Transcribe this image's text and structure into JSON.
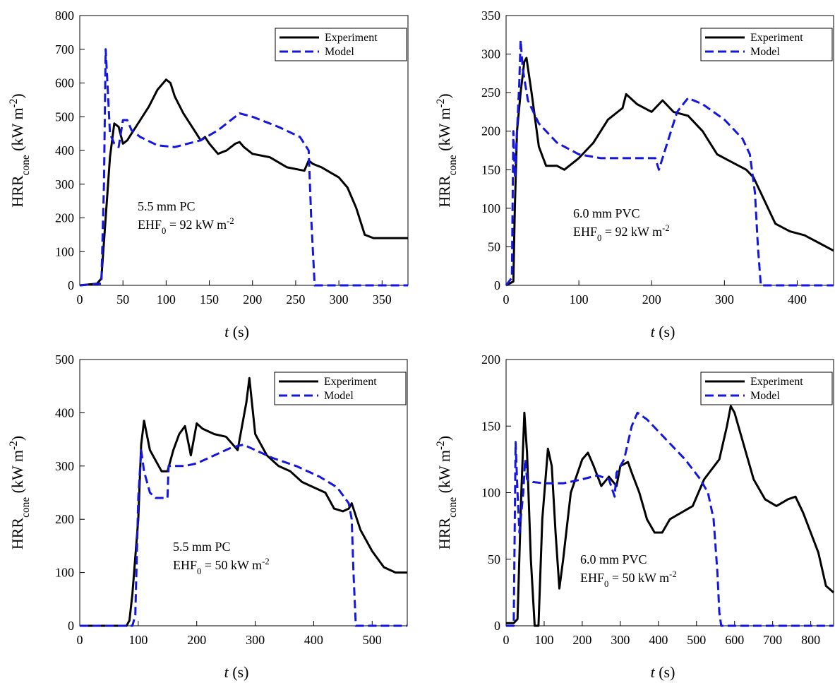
{
  "chart_data": [
    {
      "type": "line",
      "ylabel": [
        "HRR",
        "cone",
        " (kW m",
        "-2",
        ")"
      ],
      "xlabel": [
        "t",
        " (s)"
      ],
      "annotation": [
        "5.5 mm PC",
        "EHF",
        "0",
        " = 92 kW m",
        "-2"
      ],
      "xlim": [
        0,
        380
      ],
      "xticks": [
        0,
        50,
        100,
        150,
        200,
        250,
        300,
        350
      ],
      "ylim": [
        0,
        800
      ],
      "yticks": [
        0,
        100,
        200,
        300,
        400,
        500,
        600,
        700,
        800
      ],
      "legend": "upper right",
      "series": [
        {
          "name": "Experiment",
          "color": "#000000",
          "x": [
            0,
            20,
            25,
            30,
            35,
            40,
            45,
            50,
            55,
            60,
            70,
            80,
            90,
            100,
            105,
            110,
            120,
            130,
            135,
            140,
            145,
            150,
            160,
            170,
            180,
            185,
            190,
            200,
            220,
            240,
            260,
            265,
            270,
            280,
            300,
            310,
            320,
            330,
            340,
            360,
            380
          ],
          "values": [
            0,
            5,
            20,
            200,
            380,
            480,
            470,
            420,
            430,
            450,
            490,
            530,
            580,
            610,
            600,
            560,
            510,
            470,
            450,
            430,
            440,
            420,
            390,
            400,
            420,
            425,
            410,
            390,
            380,
            350,
            340,
            370,
            360,
            350,
            320,
            290,
            230,
            150,
            140,
            140,
            140
          ]
        },
        {
          "name": "Model",
          "color": "#1515e0",
          "x": [
            0,
            25,
            28,
            30,
            32,
            35,
            40,
            45,
            50,
            55,
            60,
            70,
            90,
            110,
            140,
            160,
            185,
            200,
            230,
            255,
            265,
            268,
            272,
            380
          ],
          "values": [
            0,
            5,
            300,
            700,
            600,
            450,
            420,
            410,
            490,
            490,
            460,
            440,
            415,
            410,
            430,
            460,
            510,
            500,
            470,
            440,
            400,
            200,
            0,
            0
          ]
        }
      ]
    },
    {
      "type": "line",
      "ylabel": [
        "HRR",
        "cone",
        " (kW m",
        "-2",
        ")"
      ],
      "xlabel": [
        "t",
        " (s)"
      ],
      "annotation": [
        "6.0 mm PVC",
        "EHF",
        "0",
        " = 92 kW m",
        "-2"
      ],
      "xlim": [
        0,
        450
      ],
      "xticks": [
        0,
        100,
        200,
        300,
        400
      ],
      "ylim": [
        0,
        350
      ],
      "yticks": [
        0,
        50,
        100,
        150,
        200,
        250,
        300,
        350
      ],
      "legend": "upper right",
      "series": [
        {
          "name": "Experiment",
          "color": "#000000",
          "x": [
            0,
            10,
            12,
            15,
            20,
            25,
            28,
            35,
            45,
            55,
            70,
            80,
            100,
            120,
            140,
            160,
            165,
            180,
            200,
            215,
            230,
            250,
            260,
            270,
            290,
            310,
            330,
            340,
            350,
            360,
            370,
            390,
            410,
            430,
            450
          ],
          "values": [
            0,
            5,
            100,
            200,
            250,
            290,
            295,
            250,
            180,
            155,
            155,
            150,
            165,
            185,
            215,
            230,
            248,
            235,
            225,
            240,
            225,
            220,
            210,
            200,
            170,
            160,
            150,
            140,
            120,
            100,
            80,
            70,
            65,
            55,
            45
          ]
        },
        {
          "name": "Model",
          "color": "#1515e0",
          "x": [
            0,
            8,
            10,
            12,
            15,
            18,
            20,
            23,
            30,
            45,
            70,
            100,
            130,
            170,
            205,
            210,
            220,
            235,
            250,
            270,
            300,
            325,
            335,
            342,
            346,
            350,
            450
          ],
          "values": [
            0,
            10,
            200,
            140,
            200,
            260,
            318,
            280,
            240,
            210,
            185,
            170,
            165,
            165,
            165,
            150,
            180,
            225,
            243,
            235,
            215,
            190,
            170,
            120,
            50,
            0,
            0
          ]
        }
      ]
    },
    {
      "type": "line",
      "ylabel": [
        "HRR",
        "cone",
        " (kW m",
        "-2",
        ")"
      ],
      "xlabel": [
        "t",
        " (s)"
      ],
      "annotation": [
        "5.5 mm PC",
        "EHF",
        "0",
        " = 50 kW m",
        "-2"
      ],
      "xlim": [
        0,
        560
      ],
      "xticks": [
        0,
        100,
        200,
        300,
        400,
        500
      ],
      "ylim": [
        0,
        500
      ],
      "yticks": [
        0,
        100,
        200,
        300,
        400,
        500
      ],
      "legend": "upper right",
      "series": [
        {
          "name": "Experiment",
          "color": "#000000",
          "x": [
            0,
            80,
            85,
            90,
            100,
            105,
            110,
            120,
            130,
            140,
            150,
            160,
            170,
            180,
            190,
            200,
            210,
            230,
            250,
            270,
            285,
            290,
            300,
            320,
            340,
            360,
            380,
            400,
            420,
            435,
            450,
            460,
            465,
            480,
            500,
            520,
            540,
            560
          ],
          "values": [
            0,
            0,
            10,
            60,
            200,
            340,
            385,
            330,
            310,
            290,
            290,
            330,
            360,
            375,
            320,
            380,
            370,
            360,
            355,
            330,
            420,
            465,
            360,
            320,
            300,
            290,
            270,
            260,
            250,
            220,
            215,
            220,
            230,
            180,
            140,
            110,
            100,
            100
          ]
        },
        {
          "name": "Model",
          "color": "#1515e0",
          "x": [
            0,
            90,
            95,
            100,
            105,
            110,
            120,
            130,
            150,
            152,
            160,
            180,
            200,
            230,
            260,
            280,
            300,
            330,
            370,
            410,
            440,
            460,
            465,
            468,
            472,
            560
          ],
          "values": [
            0,
            0,
            20,
            240,
            330,
            290,
            250,
            240,
            240,
            300,
            300,
            300,
            305,
            320,
            335,
            340,
            330,
            315,
            300,
            280,
            260,
            230,
            200,
            100,
            0,
            0
          ]
        }
      ]
    },
    {
      "type": "line",
      "ylabel": [
        "HRR",
        "cone",
        " (kW m",
        "-2",
        ")"
      ],
      "xlabel": [
        "t",
        " (s)"
      ],
      "annotation": [
        "6.0 mm PVC",
        "EHF",
        "0",
        " = 50 kW m",
        "-2"
      ],
      "xlim": [
        0,
        860
      ],
      "xticks": [
        0,
        100,
        200,
        300,
        400,
        500,
        600,
        700,
        800
      ],
      "ylim": [
        0,
        200
      ],
      "yticks": [
        0,
        50,
        100,
        150,
        200
      ],
      "legend": "upper right",
      "series": [
        {
          "name": "Experiment",
          "color": "#000000",
          "x": [
            0,
            20,
            30,
            40,
            48,
            55,
            65,
            75,
            85,
            95,
            110,
            120,
            130,
            140,
            150,
            170,
            200,
            215,
            230,
            250,
            270,
            290,
            300,
            320,
            330,
            350,
            370,
            390,
            410,
            430,
            460,
            490,
            520,
            560,
            580,
            590,
            600,
            620,
            650,
            680,
            710,
            740,
            760,
            780,
            800,
            820,
            840,
            860
          ],
          "values": [
            2,
            2,
            5,
            100,
            160,
            130,
            50,
            0,
            0,
            80,
            133,
            120,
            70,
            28,
            50,
            100,
            125,
            130,
            120,
            105,
            112,
            105,
            120,
            123,
            115,
            100,
            80,
            70,
            70,
            80,
            85,
            90,
            110,
            125,
            150,
            165,
            160,
            140,
            110,
            95,
            90,
            95,
            97,
            85,
            70,
            55,
            30,
            25
          ]
        },
        {
          "name": "Model",
          "color": "#1515e0",
          "x": [
            0,
            20,
            25,
            30,
            35,
            45,
            50,
            55,
            70,
            100,
            150,
            200,
            240,
            270,
            285,
            290,
            310,
            330,
            345,
            370,
            420,
            470,
            510,
            530,
            545,
            555,
            560,
            565,
            860
          ],
          "values": [
            0,
            0,
            138,
            100,
            70,
            100,
            125,
            110,
            108,
            107,
            107,
            110,
            113,
            110,
            97,
            115,
            125,
            150,
            160,
            155,
            140,
            125,
            110,
            100,
            80,
            40,
            10,
            0,
            0
          ]
        }
      ]
    }
  ]
}
